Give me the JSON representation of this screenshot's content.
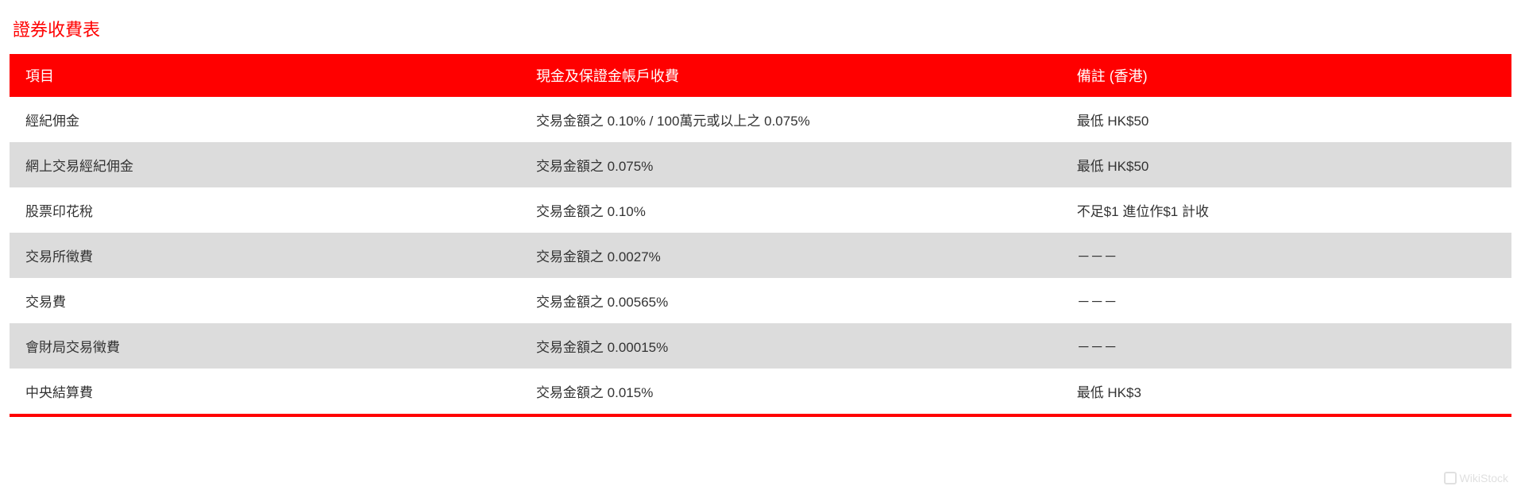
{
  "title": "證券收費表",
  "table": {
    "columns": [
      "項目",
      "現金及保證金帳戶收費",
      "備註 (香港)"
    ],
    "rows": [
      [
        "經紀佣金",
        "交易金額之 0.10% / 100萬元或以上之 0.075%",
        "最低 HK$50"
      ],
      [
        "網上交易經紀佣金",
        "交易金額之 0.075%",
        "最低 HK$50"
      ],
      [
        "股票印花稅",
        "交易金額之 0.10%",
        "不足$1 進位作$1 計收"
      ],
      [
        "交易所徵費",
        "交易金額之 0.0027%",
        "－－－"
      ],
      [
        "交易費",
        "交易金額之 0.00565%",
        "－－－"
      ],
      [
        "會財局交易徵費",
        "交易金額之 0.00015%",
        "－－－"
      ],
      [
        "中央結算費",
        "交易金額之 0.015%",
        "最低 HK$3"
      ]
    ],
    "header_bg_color": "#ff0000",
    "header_text_color": "#ffffff",
    "row_odd_bg": "#ffffff",
    "row_even_bg": "#dcdcdc",
    "cell_text_color": "#333333",
    "title_color": "#ff0000",
    "border_color": "#ff0000",
    "font_size_title": 22,
    "font_size_header": 18,
    "font_size_cell": 17,
    "column_widths_pct": [
      34,
      36,
      30
    ]
  },
  "watermark": {
    "text": "WikiStock"
  }
}
